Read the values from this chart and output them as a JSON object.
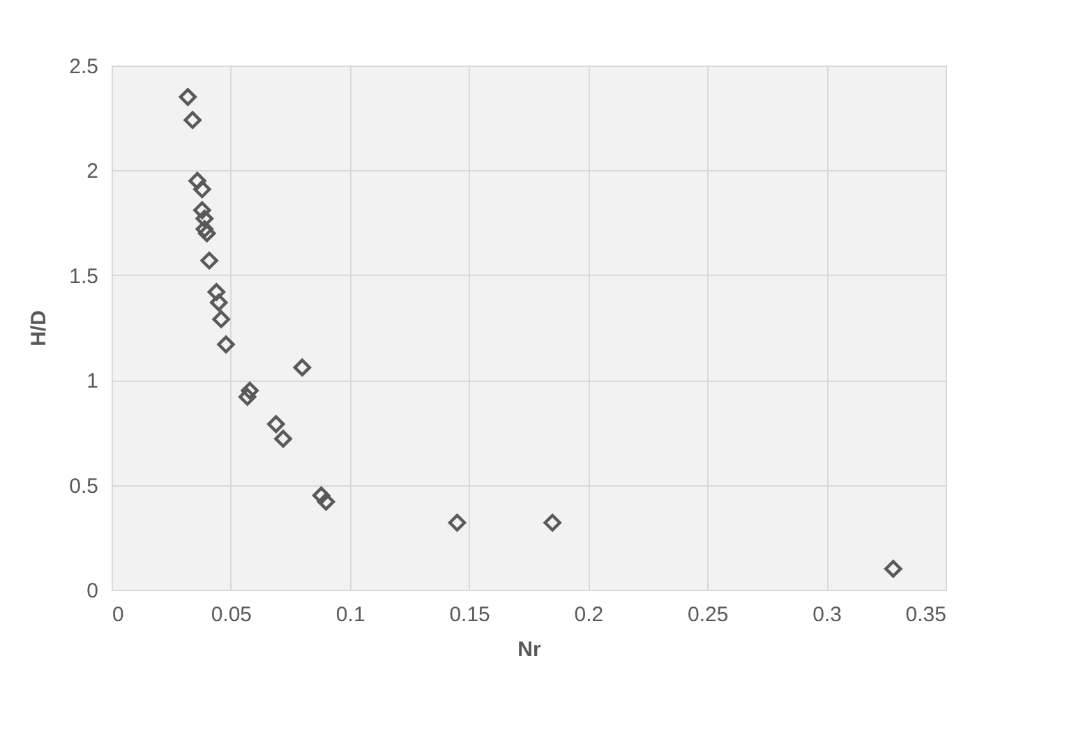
{
  "chart_data": {
    "type": "scatter",
    "xlabel": "Nr",
    "ylabel": "H/D",
    "x": [
      0.032,
      0.034,
      0.036,
      0.038,
      0.038,
      0.039,
      0.039,
      0.04,
      0.041,
      0.044,
      0.045,
      0.046,
      0.048,
      0.08,
      0.058,
      0.057,
      0.069,
      0.072,
      0.088,
      0.09,
      0.145,
      0.185,
      0.328
    ],
    "series": [
      {
        "color": "#595959",
        "values": [
          2.35,
          2.24,
          1.95,
          1.91,
          1.81,
          1.77,
          1.72,
          1.7,
          1.57,
          1.42,
          1.37,
          1.29,
          1.17,
          1.06,
          0.95,
          0.92,
          0.79,
          0.72,
          0.45,
          0.42,
          0.32,
          0.32,
          0.1
        ]
      }
    ],
    "xlim": [
      0,
      0.35
    ],
    "xticks": [
      0,
      0.05,
      0.1,
      0.15,
      0.2,
      0.25,
      0.3,
      0.35
    ],
    "ylim": [
      0,
      2.5
    ],
    "yticks": [
      0,
      0.5,
      1,
      1.5,
      2,
      2.5
    ],
    "grid": true,
    "marker": "diamond",
    "legend": false
  }
}
